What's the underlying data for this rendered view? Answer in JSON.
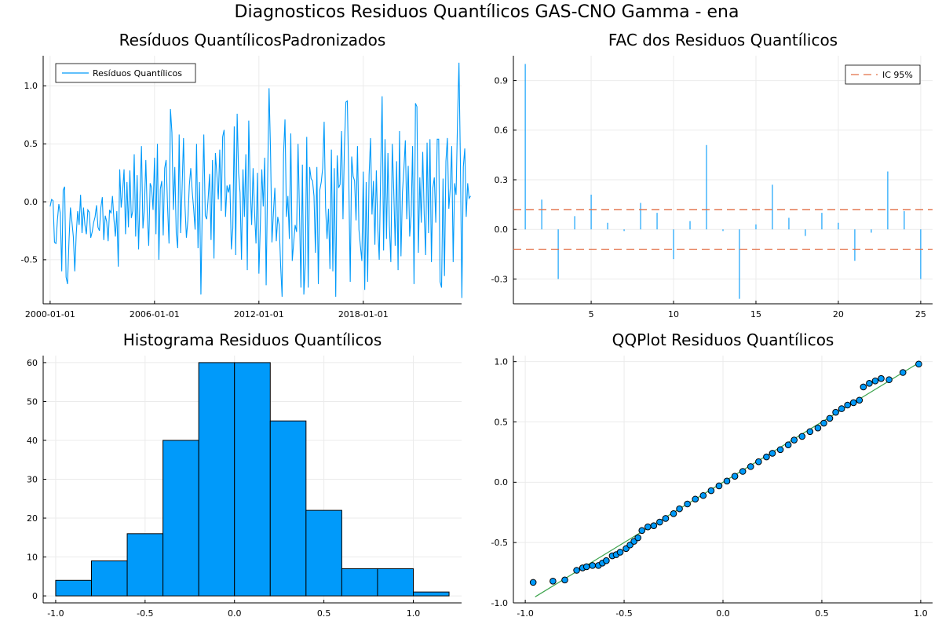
{
  "figure": {
    "title": "Diagnosticos Residuos  Quantílicos GAS-CNO Gamma - ena"
  },
  "colors": {
    "series": "#009AFA",
    "ci": "#E26F46",
    "ref_line": "#3DA44D",
    "grid": "#EBEBEB",
    "axis": "#000000"
  },
  "chart_data": [
    {
      "id": "residuals",
      "type": "line",
      "title": "Resíduos  QuantílicosPadronizados",
      "legend": {
        "entries": [
          "Resíduos Quantílicos"
        ],
        "placement": "top-left"
      },
      "grid": true,
      "xticks": [
        "2000-01-01",
        "2006-01-01",
        "2012-01-01",
        "2018-01-01"
      ],
      "xlim": [
        "2000-01-01",
        "2023-04-01"
      ],
      "yticks": [
        -0.5,
        0.0,
        0.5,
        1.0
      ],
      "ylim": [
        -0.88,
        1.26
      ],
      "start_date": "2000-01-01",
      "frequency": "monthly",
      "values": [
        -0.04,
        0.02,
        0.01,
        -0.35,
        -0.36,
        -0.16,
        -0.02,
        -0.1,
        -0.6,
        0.1,
        0.13,
        -0.65,
        -0.71,
        -0.34,
        -0.05,
        -0.17,
        -0.3,
        -0.6,
        -0.28,
        -0.08,
        -0.2,
        0.06,
        -0.27,
        -0.05,
        -0.2,
        -0.28,
        -0.07,
        -0.09,
        -0.31,
        -0.26,
        -0.18,
        -0.13,
        -0.03,
        -0.22,
        -0.25,
        -0.05,
        0.04,
        -0.33,
        -0.12,
        -0.17,
        -0.34,
        -0.07,
        -0.1,
        0.05,
        -0.15,
        -0.3,
        -0.08,
        -0.56,
        0.28,
        -0.05,
        0.09,
        0.28,
        -0.28,
        0.17,
        -0.22,
        0.27,
        -0.14,
        -0.08,
        0.41,
        -0.3,
        0.23,
        -0.41,
        0.06,
        0.48,
        -0.23,
        -0.06,
        0.36,
        -0.1,
        -0.38,
        0.16,
        0.12,
        -0.07,
        0.38,
        -0.28,
        0.5,
        -0.5,
        0.11,
        0.18,
        -0.29,
        0.29,
        0.36,
        -0.04,
        -0.36,
        0.8,
        0.6,
        -0.07,
        0.3,
        -0.28,
        -0.4,
        0.58,
        -0.27,
        0.11,
        0.55,
        -0.03,
        -0.31,
        -0.16,
        0.14,
        0.29,
        0.09,
        -0.06,
        -0.24,
        0.5,
        -0.4,
        0.17,
        -0.8,
        0.0,
        0.58,
        -0.12,
        -0.15,
        0.03,
        0.24,
        -0.33,
        0.36,
        -0.49,
        0.42,
        0.24,
        0.02,
        0.45,
        -0.08,
        0.56,
        0.62,
        -0.13,
        0.14,
        0.08,
        0.15,
        -0.41,
        -0.23,
        0.65,
        -0.46,
        0.76,
        0.25,
        0.08,
        -0.5,
        0.28,
        -0.13,
        0.41,
        -0.59,
        0.7,
        0.13,
        -0.2,
        0.29,
        -0.09,
        -0.36,
        0.25,
        -0.62,
        -0.2,
        0.28,
        -0.04,
        0.38,
        -0.72,
        0.18,
        0.98,
        0.45,
        -0.35,
        -0.1,
        0.12,
        -0.34,
        -0.13,
        -0.2,
        -0.55,
        -0.82,
        0.41,
        0.71,
        -0.13,
        0.05,
        -0.32,
        0.59,
        -0.51,
        -0.35,
        -0.2,
        -0.26,
        0.5,
        -0.1,
        -0.74,
        0.32,
        -0.8,
        -0.53,
        0.56,
        -0.74,
        0.3,
        0.2,
        0.18,
        0.05,
        -0.44,
        0.3,
        -0.71,
        0.1,
        0.17,
        0.29,
        0.69,
        -0.05,
        -0.32,
        -0.06,
        -0.58,
        0.45,
        -0.6,
        0.29,
        -0.82,
        0.4,
        0.12,
        0.15,
        0.61,
        -0.15,
        0.48,
        0.86,
        0.87,
        0.19,
        -0.69,
        0.39,
        0.22,
        0.18,
        -0.16,
        0.48,
        -0.24,
        -0.38,
        -0.51,
        0.26,
        -0.76,
        0.17,
        -0.69,
        0.23,
        0.55,
        -0.11,
        0.18,
        -0.37,
        0.27,
        -0.22,
        -0.5,
        0.26,
        0.91,
        -0.42,
        0.54,
        -0.32,
        0.42,
        -0.21,
        -0.52,
        0.5,
        0.1,
        -0.38,
        0.35,
        -0.59,
        0.61,
        -0.47,
        0.08,
        0.28,
        0.53,
        -0.15,
        0.31,
        -0.3,
        -0.12,
        0.48,
        -0.71,
        0.85,
        0.82,
        -0.44,
        0.21,
        -0.18,
        0.43,
        -0.1,
        -0.46,
        0.51,
        -0.27,
        0.54,
        -0.52,
        0.12,
        0.21,
        -0.18,
        0.54,
        0.54,
        -0.69,
        -0.74,
        0.2,
        -0.64,
        0.35,
        0.55,
        -0.06,
        0.12,
        0.48,
        -0.52,
        0.16,
        0.06,
        0.7,
        1.2,
        0.32,
        -0.83,
        0.3,
        0.46,
        -0.13,
        0.16,
        0.03,
        0.05
      ]
    },
    {
      "id": "acf",
      "type": "bar",
      "title": "FAC dos Residuos Quantílicos",
      "legend": {
        "entries": [
          "IC 95%"
        ],
        "placement": "top-right"
      },
      "grid": true,
      "lags": [
        1,
        2,
        3,
        4,
        5,
        6,
        7,
        8,
        9,
        10,
        11,
        12,
        13,
        14,
        15,
        16,
        17,
        18,
        19,
        20,
        21,
        22,
        23,
        24,
        25
      ],
      "values": [
        1.0,
        0.18,
        -0.3,
        0.08,
        0.21,
        0.04,
        -0.01,
        0.16,
        0.1,
        -0.18,
        0.05,
        0.51,
        -0.01,
        -0.42,
        0.03,
        0.27,
        0.07,
        -0.04,
        0.1,
        0.04,
        -0.19,
        -0.02,
        0.35,
        0.11,
        -0.3
      ],
      "ci": [
        -0.12,
        0.12
      ],
      "xticks": [
        5,
        10,
        15,
        20,
        25
      ],
      "xlim": [
        0.28,
        25.72
      ],
      "yticks": [
        -0.3,
        0.0,
        0.3,
        0.6,
        0.9
      ],
      "ylim": [
        -0.45,
        1.05
      ]
    },
    {
      "id": "histogram",
      "type": "bar",
      "title": "Histograma Residuos Quantílicos",
      "grid": true,
      "bin_edges": [
        -1.0,
        -0.8,
        -0.6,
        -0.4,
        -0.2,
        0.0,
        0.2,
        0.4,
        0.6,
        0.8,
        1.0,
        1.2
      ],
      "counts": [
        4,
        9,
        16,
        40,
        60,
        60,
        45,
        22,
        7,
        7,
        1
      ],
      "xticks": [
        -1.0,
        -0.5,
        0.0,
        0.5,
        1.0
      ],
      "xlim": [
        -1.07,
        1.27
      ],
      "yticks": [
        0,
        10,
        20,
        30,
        40,
        50,
        60
      ],
      "ylim": [
        -1.8,
        61.8
      ]
    },
    {
      "id": "qqplot",
      "type": "scatter",
      "title": "QQPlot Residuos Quantílicos",
      "grid": true,
      "xticks": [
        -1.0,
        -0.5,
        0.0,
        0.5,
        1.0
      ],
      "xlim": [
        -1.06,
        1.06
      ],
      "yticks": [
        -1.0,
        -0.5,
        0.0,
        0.5,
        1.0
      ],
      "ylim": [
        -1.0,
        1.05
      ],
      "reference_line": {
        "x": [
          -0.95,
          0.99
        ],
        "y": [
          -0.95,
          0.99
        ]
      },
      "points": [
        [
          -0.96,
          -0.83
        ],
        [
          -0.86,
          -0.82
        ],
        [
          -0.8,
          -0.81
        ],
        [
          -0.74,
          -0.73
        ],
        [
          -0.71,
          -0.71
        ],
        [
          -0.69,
          -0.7
        ],
        [
          -0.66,
          -0.69
        ],
        [
          -0.63,
          -0.69
        ],
        [
          -0.61,
          -0.67
        ],
        [
          -0.59,
          -0.65
        ],
        [
          -0.56,
          -0.61
        ],
        [
          -0.54,
          -0.6
        ],
        [
          -0.52,
          -0.58
        ],
        [
          -0.49,
          -0.55
        ],
        [
          -0.47,
          -0.52
        ],
        [
          -0.45,
          -0.49
        ],
        [
          -0.43,
          -0.46
        ],
        [
          -0.41,
          -0.4
        ],
        [
          -0.38,
          -0.37
        ],
        [
          -0.35,
          -0.36
        ],
        [
          -0.32,
          -0.33
        ],
        [
          -0.29,
          -0.3
        ],
        [
          -0.25,
          -0.26
        ],
        [
          -0.22,
          -0.22
        ],
        [
          -0.18,
          -0.18
        ],
        [
          -0.14,
          -0.14
        ],
        [
          -0.1,
          -0.11
        ],
        [
          -0.06,
          -0.07
        ],
        [
          -0.02,
          -0.03
        ],
        [
          0.02,
          0.01
        ],
        [
          0.06,
          0.05
        ],
        [
          0.1,
          0.09
        ],
        [
          0.14,
          0.13
        ],
        [
          0.18,
          0.17
        ],
        [
          0.22,
          0.21
        ],
        [
          0.25,
          0.24
        ],
        [
          0.29,
          0.27
        ],
        [
          0.33,
          0.31
        ],
        [
          0.36,
          0.35
        ],
        [
          0.4,
          0.38
        ],
        [
          0.44,
          0.42
        ],
        [
          0.48,
          0.45
        ],
        [
          0.51,
          0.49
        ],
        [
          0.54,
          0.53
        ],
        [
          0.57,
          0.58
        ],
        [
          0.6,
          0.61
        ],
        [
          0.63,
          0.64
        ],
        [
          0.66,
          0.66
        ],
        [
          0.69,
          0.68
        ],
        [
          0.71,
          0.79
        ],
        [
          0.74,
          0.82
        ],
        [
          0.77,
          0.84
        ],
        [
          0.8,
          0.86
        ],
        [
          0.84,
          0.85
        ],
        [
          0.91,
          0.91
        ],
        [
          0.99,
          0.98
        ]
      ]
    }
  ]
}
